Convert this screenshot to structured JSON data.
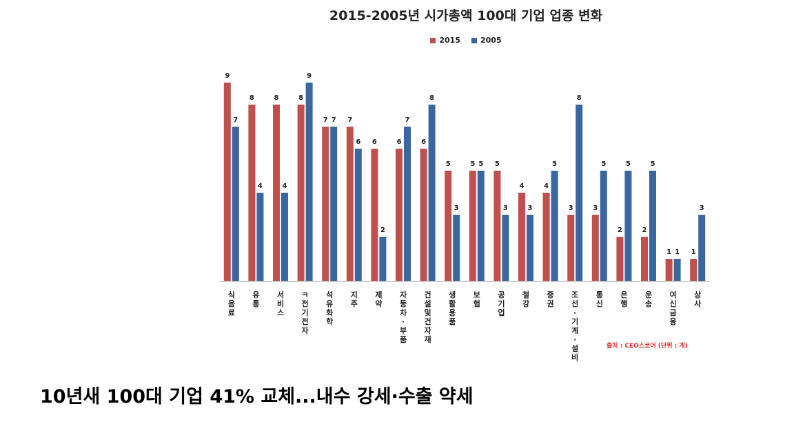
{
  "chart_data": {
    "type": "bar",
    "title": "2015-2005년 시가총액 100대 기업 업종 변화",
    "xlabel": "",
    "ylabel": "",
    "ylim": [
      0,
      9
    ],
    "grid": false,
    "legend_position": "top-center",
    "categories": [
      "식음료",
      "유통",
      "서비스",
      "IT전기전자",
      "석유화학",
      "지주",
      "제약",
      "자동차·부품",
      "건설 및 건자재",
      "생활용품",
      "보험",
      "공기업",
      "철강",
      "증권",
      "조선·기계·설비",
      "통신",
      "은행",
      "운송",
      "여신금융",
      "상사"
    ],
    "category_display": [
      "식음료",
      "유통",
      "서비스",
      "ㅋ전기전자",
      "석유화학",
      "지주",
      "제약",
      "자동차·부품",
      "건설및건자재",
      "생활용품",
      "보험",
      "공기업",
      "철강",
      "증권",
      "조선·기계·설비",
      "통신",
      "은행",
      "운송",
      "여신금융",
      "상사"
    ],
    "series": [
      {
        "name": "2015",
        "color": "#c0504d",
        "values": [
          9,
          8,
          8,
          8,
          7,
          7,
          6,
          6,
          6,
          5,
          5,
          5,
          4,
          4,
          3,
          3,
          2,
          2,
          1,
          1
        ]
      },
      {
        "name": "2005",
        "color": "#3a679f",
        "values": [
          7,
          4,
          4,
          9,
          7,
          6,
          2,
          7,
          8,
          3,
          5,
          3,
          3,
          5,
          8,
          5,
          5,
          5,
          1,
          3
        ]
      }
    ],
    "source_note": "출처 : CEO스코어 (단위 : 개)"
  },
  "headline": "10년새 100대 기업 41% 교체...내수 강세·수출 약세"
}
